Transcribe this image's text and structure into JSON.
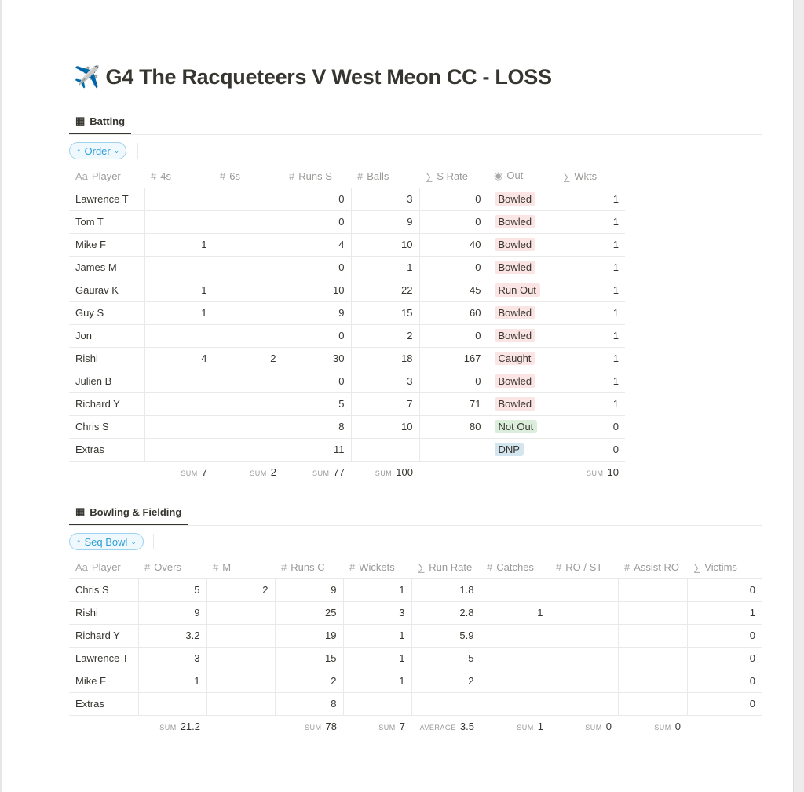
{
  "title": "G4 The Racqueteers V West Meon CC - LOSS",
  "title_icon": "airplane-emoji",
  "colors": {
    "bowled": "#fbe4e4",
    "caught": "#fbe4e4",
    "run_out": "#fbe4e4",
    "not_out": "#dbeddb",
    "dnp": "#d3e5ef",
    "accent": "#2e9fd8"
  },
  "batting": {
    "tab": "Batting",
    "sort": "Order",
    "columns": [
      {
        "icon": "Aa",
        "label": "Player"
      },
      {
        "icon": "#",
        "label": "4s"
      },
      {
        "icon": "#",
        "label": "6s"
      },
      {
        "icon": "#",
        "label": "Runs S"
      },
      {
        "icon": "#",
        "label": "Balls"
      },
      {
        "icon": "∑",
        "label": "S Rate"
      },
      {
        "icon": "◉",
        "label": "Out"
      },
      {
        "icon": "∑",
        "label": "Wkts"
      }
    ],
    "rows": [
      [
        "Lawrence T",
        "",
        "",
        "0",
        "3",
        "0",
        "Bowled",
        "1"
      ],
      [
        "Tom T",
        "",
        "",
        "0",
        "9",
        "0",
        "Bowled",
        "1"
      ],
      [
        "Mike F",
        "1",
        "",
        "4",
        "10",
        "40",
        "Bowled",
        "1"
      ],
      [
        "James M",
        "",
        "",
        "0",
        "1",
        "0",
        "Bowled",
        "1"
      ],
      [
        "Gaurav K",
        "1",
        "",
        "10",
        "22",
        "45",
        "Run Out",
        "1"
      ],
      [
        "Guy S",
        "1",
        "",
        "9",
        "15",
        "60",
        "Bowled",
        "1"
      ],
      [
        "Jon",
        "",
        "",
        "0",
        "2",
        "0",
        "Bowled",
        "1"
      ],
      [
        "Rishi",
        "4",
        "2",
        "30",
        "18",
        "167",
        "Caught",
        "1"
      ],
      [
        "Julien B",
        "",
        "",
        "0",
        "3",
        "0",
        "Bowled",
        "1"
      ],
      [
        "Richard Y",
        "",
        "",
        "5",
        "7",
        "71",
        "Bowled",
        "1"
      ],
      [
        "Chris S",
        "",
        "",
        "8",
        "10",
        "80",
        "Not Out",
        "0"
      ],
      [
        "Extras",
        "",
        "",
        "11",
        "",
        "",
        "DNP",
        "0"
      ]
    ],
    "summary": [
      null,
      {
        "label": "SUM",
        "value": "7"
      },
      {
        "label": "SUM",
        "value": "2"
      },
      {
        "label": "SUM",
        "value": "77"
      },
      {
        "label": "SUM",
        "value": "100"
      },
      null,
      null,
      {
        "label": "SUM",
        "value": "10"
      }
    ]
  },
  "bowling": {
    "tab": "Bowling & Fielding",
    "sort": "Seq Bowl",
    "columns": [
      {
        "icon": "Aa",
        "label": "Player"
      },
      {
        "icon": "#",
        "label": "Overs"
      },
      {
        "icon": "#",
        "label": "M"
      },
      {
        "icon": "#",
        "label": "Runs C"
      },
      {
        "icon": "#",
        "label": "Wickets"
      },
      {
        "icon": "∑",
        "label": "Run Rate"
      },
      {
        "icon": "#",
        "label": "Catches"
      },
      {
        "icon": "#",
        "label": "RO / ST"
      },
      {
        "icon": "#",
        "label": "Assist RO"
      },
      {
        "icon": "∑",
        "label": "Victims"
      }
    ],
    "rows": [
      [
        "Chris S",
        "5",
        "2",
        "9",
        "1",
        "1.8",
        "",
        "",
        "",
        "0"
      ],
      [
        "Rishi",
        "9",
        "",
        "25",
        "3",
        "2.8",
        "1",
        "",
        "",
        "1"
      ],
      [
        "Richard Y",
        "3.2",
        "",
        "19",
        "1",
        "5.9",
        "",
        "",
        "",
        "0"
      ],
      [
        "Lawrence T",
        "3",
        "",
        "15",
        "1",
        "5",
        "",
        "",
        "",
        "0"
      ],
      [
        "Mike F",
        "1",
        "",
        "2",
        "1",
        "2",
        "",
        "",
        "",
        "0"
      ],
      [
        "Extras",
        "",
        "",
        "8",
        "",
        "",
        "",
        "",
        "",
        "0"
      ]
    ],
    "summary": [
      null,
      {
        "label": "SUM",
        "value": "21.2"
      },
      null,
      {
        "label": "SUM",
        "value": "78"
      },
      {
        "label": "SUM",
        "value": "7"
      },
      {
        "label": "AVERAGE",
        "value": "3.5"
      },
      {
        "label": "SUM",
        "value": "1"
      },
      {
        "label": "SUM",
        "value": "0"
      },
      {
        "label": "SUM",
        "value": "0"
      },
      null
    ]
  }
}
